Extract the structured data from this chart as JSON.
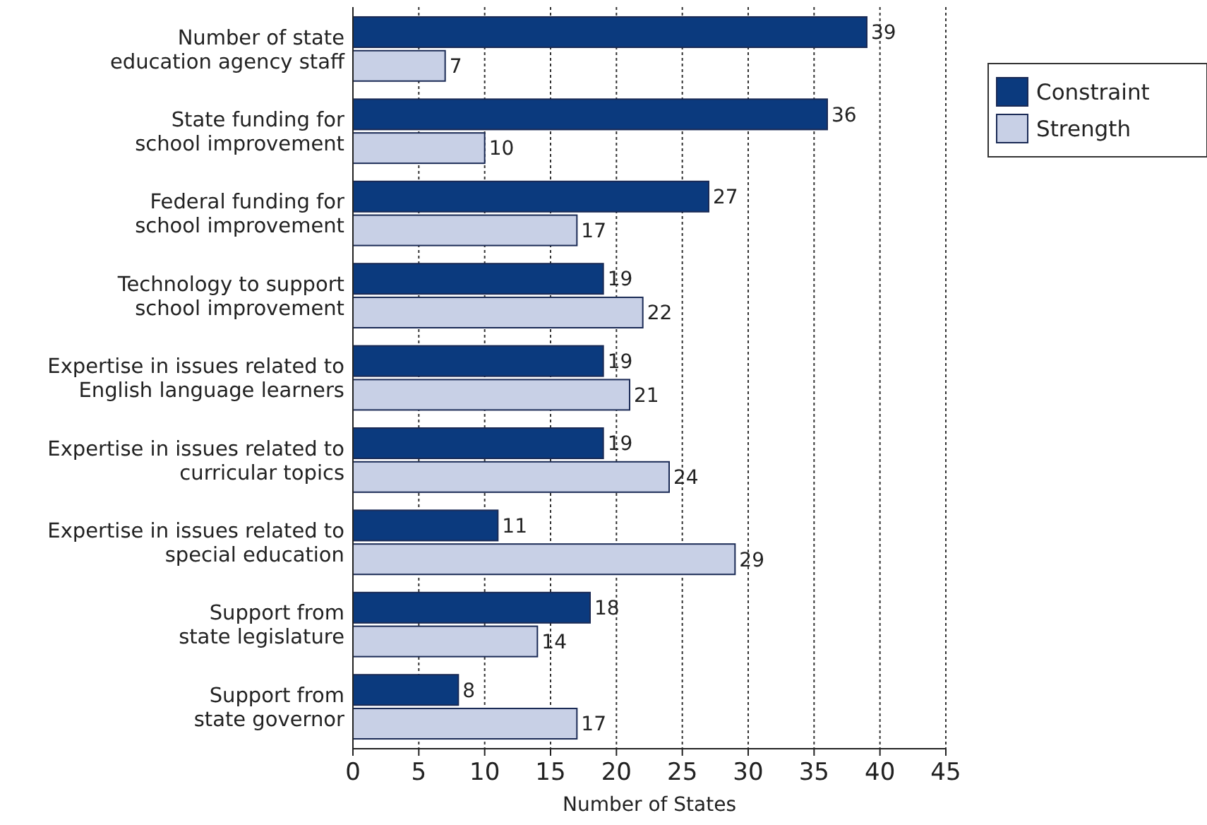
{
  "chart_data": {
    "type": "bar",
    "orientation": "horizontal",
    "xlabel": "Number of States",
    "categories": [
      "Number of state\neducation agency staff",
      "State funding for\nschool improvement",
      "Federal funding for\nschool improvement",
      "Technology to support\nschool improvement",
      "Expertise in issues related to\nEnglish language learners",
      "Expertise in issues related to\ncurricular topics",
      "Expertise in issues related to\nspecial education",
      "Support from\nstate legislature",
      "Support from\nstate governor"
    ],
    "series": [
      {
        "name": "Constraint",
        "color": "#0b3a7e",
        "values": [
          39,
          36,
          27,
          19,
          19,
          19,
          11,
          18,
          8
        ]
      },
      {
        "name": "Strength",
        "color": "#c8d0e6",
        "values": [
          7,
          10,
          17,
          22,
          21,
          24,
          29,
          14,
          17
        ]
      }
    ],
    "xlim": [
      0,
      45
    ],
    "xticks": [
      0,
      5,
      10,
      15,
      20,
      25,
      30,
      35,
      40,
      45
    ],
    "grid": "x",
    "legend": "right",
    "data_labels": true
  }
}
